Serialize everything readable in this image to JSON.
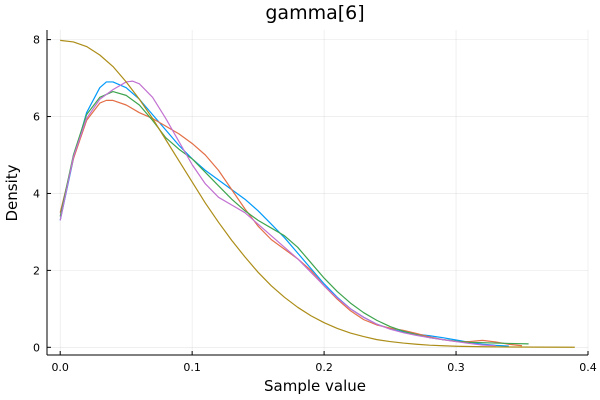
{
  "chart_data": {
    "type": "line",
    "title": "gamma[6]",
    "xlabel": "Sample value",
    "ylabel": "Density",
    "xlim": [
      -0.01,
      0.4
    ],
    "ylim": [
      -0.2,
      8.25
    ],
    "x_ticks": [
      0.0,
      0.1,
      0.2,
      0.3,
      0.4
    ],
    "x_tick_labels": [
      "0.0",
      "0.1",
      "0.2",
      "0.3",
      "0.4"
    ],
    "y_ticks": [
      0,
      2,
      4,
      6,
      8
    ],
    "y_tick_labels": [
      "0",
      "2",
      "4",
      "6",
      "8"
    ],
    "grid": true,
    "legend": "none",
    "series": [
      {
        "color": "#009AFA",
        "points": [
          [
            0.0,
            3.3
          ],
          [
            0.01,
            4.9
          ],
          [
            0.02,
            6.1
          ],
          [
            0.03,
            6.75
          ],
          [
            0.035,
            6.9
          ],
          [
            0.04,
            6.9
          ],
          [
            0.05,
            6.75
          ],
          [
            0.06,
            6.45
          ],
          [
            0.07,
            6.05
          ],
          [
            0.08,
            5.65
          ],
          [
            0.09,
            5.25
          ],
          [
            0.1,
            4.9
          ],
          [
            0.11,
            4.6
          ],
          [
            0.12,
            4.35
          ],
          [
            0.13,
            4.1
          ],
          [
            0.14,
            3.85
          ],
          [
            0.15,
            3.55
          ],
          [
            0.16,
            3.2
          ],
          [
            0.17,
            2.85
          ],
          [
            0.18,
            2.45
          ],
          [
            0.19,
            2.05
          ],
          [
            0.2,
            1.65
          ],
          [
            0.21,
            1.3
          ],
          [
            0.22,
            1.0
          ],
          [
            0.23,
            0.78
          ],
          [
            0.24,
            0.6
          ],
          [
            0.25,
            0.48
          ],
          [
            0.26,
            0.4
          ],
          [
            0.27,
            0.34
          ],
          [
            0.28,
            0.3
          ],
          [
            0.29,
            0.25
          ],
          [
            0.3,
            0.19
          ],
          [
            0.31,
            0.13
          ],
          [
            0.32,
            0.08
          ],
          [
            0.33,
            0.05
          ],
          [
            0.34,
            0.03
          ]
        ]
      },
      {
        "color": "#E36F47",
        "points": [
          [
            0.0,
            3.5
          ],
          [
            0.01,
            4.9
          ],
          [
            0.02,
            5.9
          ],
          [
            0.03,
            6.35
          ],
          [
            0.035,
            6.42
          ],
          [
            0.04,
            6.42
          ],
          [
            0.05,
            6.3
          ],
          [
            0.06,
            6.1
          ],
          [
            0.07,
            5.95
          ],
          [
            0.08,
            5.75
          ],
          [
            0.09,
            5.55
          ],
          [
            0.1,
            5.3
          ],
          [
            0.11,
            5.0
          ],
          [
            0.12,
            4.6
          ],
          [
            0.13,
            4.1
          ],
          [
            0.14,
            3.6
          ],
          [
            0.15,
            3.15
          ],
          [
            0.16,
            2.8
          ],
          [
            0.17,
            2.55
          ],
          [
            0.18,
            2.3
          ],
          [
            0.19,
            2.0
          ],
          [
            0.2,
            1.6
          ],
          [
            0.21,
            1.25
          ],
          [
            0.22,
            0.95
          ],
          [
            0.23,
            0.72
          ],
          [
            0.24,
            0.58
          ],
          [
            0.25,
            0.5
          ],
          [
            0.26,
            0.44
          ],
          [
            0.27,
            0.36
          ],
          [
            0.28,
            0.27
          ],
          [
            0.29,
            0.2
          ],
          [
            0.3,
            0.15
          ],
          [
            0.31,
            0.15
          ],
          [
            0.32,
            0.18
          ],
          [
            0.33,
            0.14
          ],
          [
            0.34,
            0.08
          ],
          [
            0.35,
            0.04
          ]
        ]
      },
      {
        "color": "#3EA44E",
        "points": [
          [
            0.0,
            3.4
          ],
          [
            0.01,
            5.0
          ],
          [
            0.02,
            6.05
          ],
          [
            0.03,
            6.5
          ],
          [
            0.04,
            6.65
          ],
          [
            0.05,
            6.55
          ],
          [
            0.06,
            6.3
          ],
          [
            0.07,
            5.9
          ],
          [
            0.08,
            5.45
          ],
          [
            0.09,
            5.15
          ],
          [
            0.1,
            4.9
          ],
          [
            0.11,
            4.55
          ],
          [
            0.12,
            4.2
          ],
          [
            0.13,
            3.85
          ],
          [
            0.14,
            3.55
          ],
          [
            0.15,
            3.3
          ],
          [
            0.16,
            3.1
          ],
          [
            0.17,
            2.9
          ],
          [
            0.18,
            2.6
          ],
          [
            0.19,
            2.2
          ],
          [
            0.2,
            1.8
          ],
          [
            0.21,
            1.45
          ],
          [
            0.22,
            1.15
          ],
          [
            0.23,
            0.9
          ],
          [
            0.24,
            0.7
          ],
          [
            0.25,
            0.54
          ],
          [
            0.26,
            0.42
          ],
          [
            0.27,
            0.33
          ],
          [
            0.28,
            0.25
          ],
          [
            0.29,
            0.2
          ],
          [
            0.3,
            0.16
          ],
          [
            0.31,
            0.13
          ],
          [
            0.32,
            0.12
          ],
          [
            0.33,
            0.11
          ],
          [
            0.34,
            0.1
          ],
          [
            0.355,
            0.09
          ]
        ]
      },
      {
        "color": "#C271D2",
        "points": [
          [
            0.0,
            3.3
          ],
          [
            0.01,
            4.95
          ],
          [
            0.02,
            5.95
          ],
          [
            0.03,
            6.45
          ],
          [
            0.04,
            6.7
          ],
          [
            0.05,
            6.9
          ],
          [
            0.055,
            6.92
          ],
          [
            0.06,
            6.85
          ],
          [
            0.07,
            6.5
          ],
          [
            0.08,
            5.95
          ],
          [
            0.09,
            5.35
          ],
          [
            0.1,
            4.75
          ],
          [
            0.11,
            4.25
          ],
          [
            0.12,
            3.9
          ],
          [
            0.13,
            3.7
          ],
          [
            0.14,
            3.5
          ],
          [
            0.15,
            3.2
          ],
          [
            0.16,
            2.9
          ],
          [
            0.17,
            2.6
          ],
          [
            0.18,
            2.3
          ],
          [
            0.19,
            1.95
          ],
          [
            0.2,
            1.6
          ],
          [
            0.21,
            1.28
          ],
          [
            0.22,
            1.0
          ],
          [
            0.23,
            0.78
          ],
          [
            0.24,
            0.6
          ],
          [
            0.25,
            0.47
          ],
          [
            0.26,
            0.38
          ],
          [
            0.27,
            0.31
          ],
          [
            0.28,
            0.25
          ],
          [
            0.29,
            0.2
          ],
          [
            0.3,
            0.15
          ],
          [
            0.31,
            0.1
          ],
          [
            0.32,
            0.06
          ],
          [
            0.33,
            0.04
          ]
        ]
      },
      {
        "color": "#AC8D18",
        "points": [
          [
            0.0,
            7.98
          ],
          [
            0.01,
            7.94
          ],
          [
            0.02,
            7.82
          ],
          [
            0.03,
            7.6
          ],
          [
            0.04,
            7.3
          ],
          [
            0.05,
            6.9
          ],
          [
            0.06,
            6.45
          ],
          [
            0.07,
            5.95
          ],
          [
            0.08,
            5.4
          ],
          [
            0.09,
            4.85
          ],
          [
            0.1,
            4.3
          ],
          [
            0.11,
            3.75
          ],
          [
            0.12,
            3.25
          ],
          [
            0.13,
            2.78
          ],
          [
            0.14,
            2.35
          ],
          [
            0.15,
            1.95
          ],
          [
            0.16,
            1.6
          ],
          [
            0.17,
            1.3
          ],
          [
            0.18,
            1.04
          ],
          [
            0.19,
            0.82
          ],
          [
            0.2,
            0.64
          ],
          [
            0.21,
            0.49
          ],
          [
            0.22,
            0.37
          ],
          [
            0.23,
            0.28
          ],
          [
            0.24,
            0.2
          ],
          [
            0.25,
            0.15
          ],
          [
            0.26,
            0.11
          ],
          [
            0.27,
            0.08
          ],
          [
            0.28,
            0.055
          ],
          [
            0.29,
            0.04
          ],
          [
            0.3,
            0.028
          ],
          [
            0.32,
            0.015
          ],
          [
            0.34,
            0.008
          ],
          [
            0.36,
            0.004
          ],
          [
            0.39,
            0.002
          ]
        ]
      }
    ]
  }
}
